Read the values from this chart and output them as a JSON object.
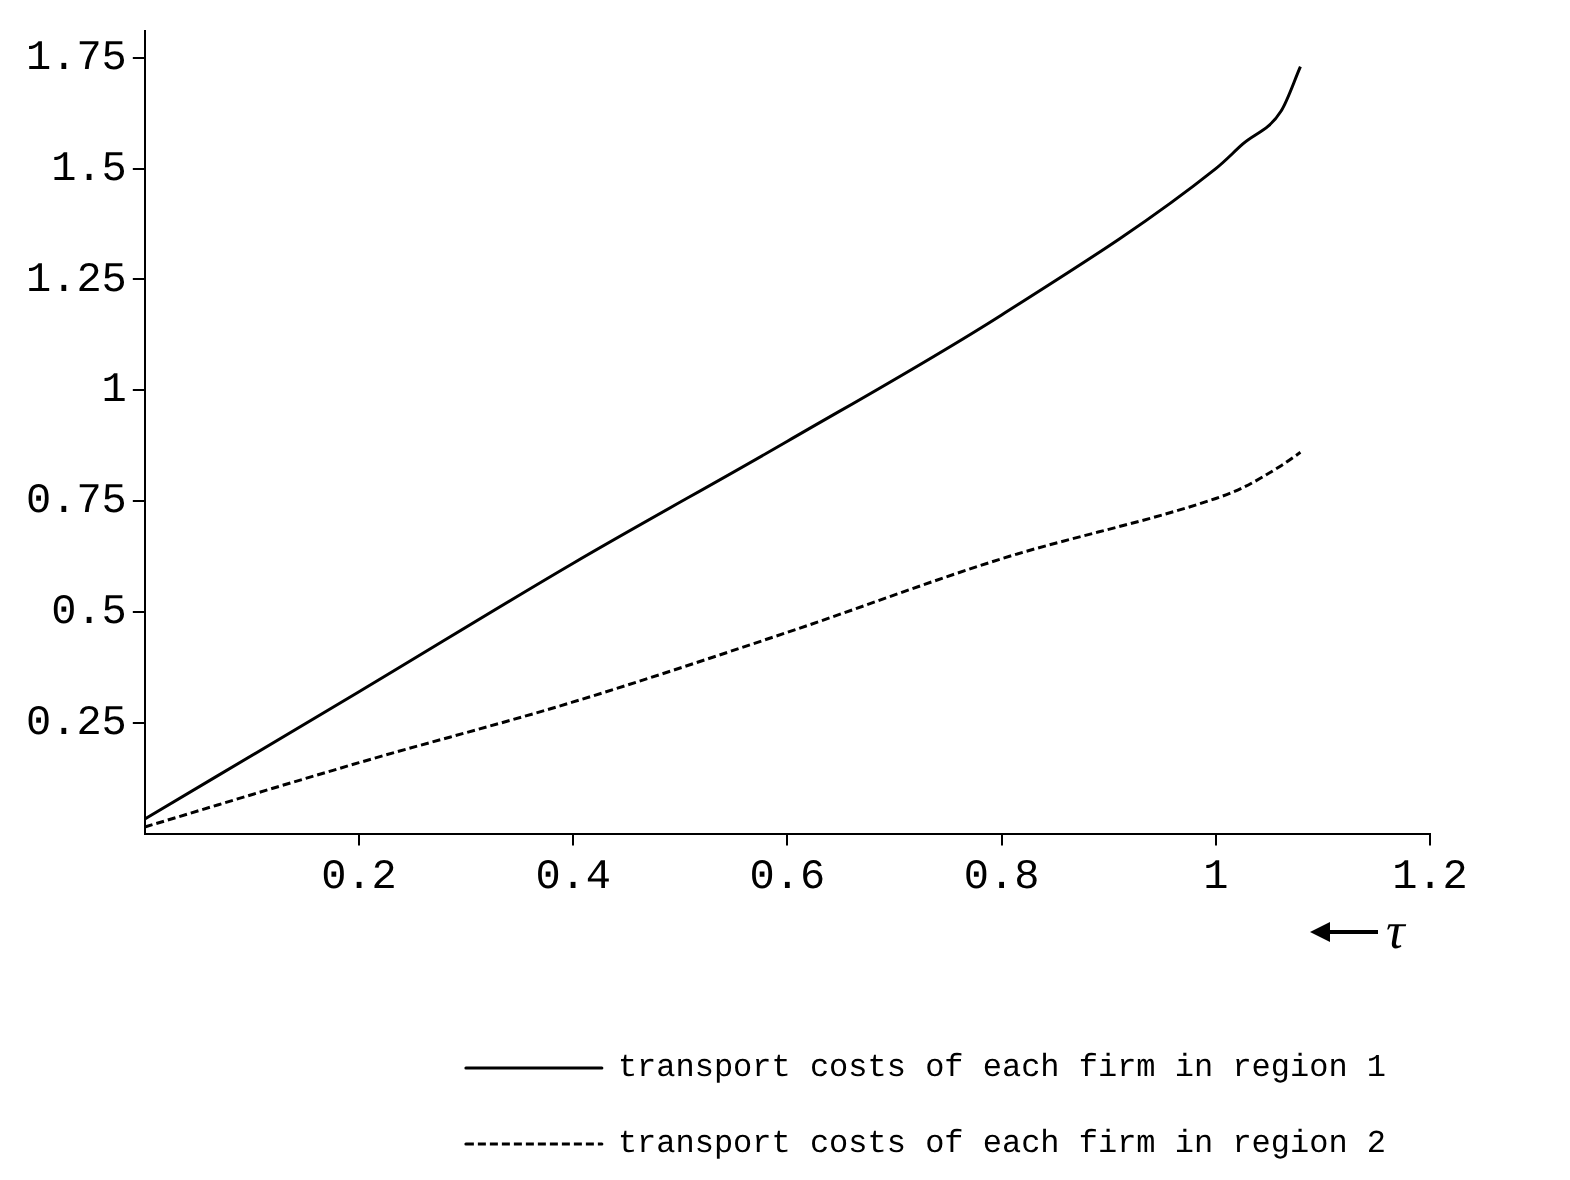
{
  "chart_data": {
    "type": "line",
    "xlabel": "τ",
    "x": [
      0,
      0.2,
      0.4,
      0.6,
      0.8,
      1.0,
      1.025,
      1.061,
      1.079
    ],
    "series": [
      {
        "name": "transport costs of each firm in region 1",
        "color": "#000000",
        "line_style": "solid",
        "values": [
          0.033,
          0.32,
          0.61,
          0.885,
          1.17,
          1.5,
          1.555,
          1.63,
          1.73
        ]
      },
      {
        "name": "transport costs of each firm in region 2",
        "color": "#000000",
        "line_style": "dashed",
        "values": [
          0.015,
          0.16,
          0.297,
          0.454,
          0.62,
          0.756,
          0.78,
          0.83,
          0.86
        ]
      }
    ],
    "xlim": [
      0,
      1.2
    ],
    "ylim": [
      0,
      1.81
    ],
    "xticks": [
      0.2,
      0.4,
      0.6,
      0.8,
      1,
      1.2
    ],
    "yticks": [
      0.25,
      0.5,
      0.75,
      1,
      1.25,
      1.5,
      1.75
    ],
    "grid": false,
    "legend": "bottom",
    "marker": "none"
  }
}
